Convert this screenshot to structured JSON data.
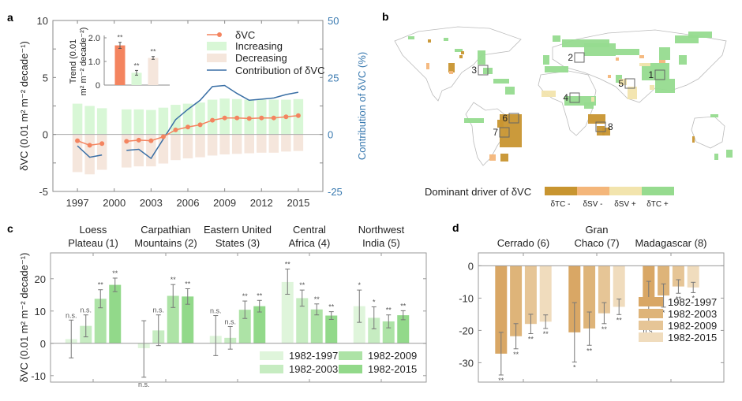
{
  "chart_data": [
    {
      "panel": "a",
      "type": "bar",
      "title": "",
      "x": [
        1997,
        1998,
        1999,
        2001,
        2002,
        2003,
        2004,
        2005,
        2006,
        2007,
        2008,
        2009,
        2010,
        2011,
        2012,
        2013,
        2014,
        2015
      ],
      "xticks": [
        "1997",
        "2000",
        "2003",
        "2006",
        "2009",
        "2012",
        "2015"
      ],
      "xtick_values": [
        1997,
        2000,
        2003,
        2006,
        2009,
        2012,
        2015
      ],
      "xlim": [
        1995,
        2017
      ],
      "ylabel": "δVC (0.01 m² m⁻² decade⁻¹)",
      "ylim": [
        -5,
        10
      ],
      "yticks": [
        "-5",
        "0",
        "5",
        "10"
      ],
      "ytick_values": [
        -5,
        0,
        5,
        10
      ],
      "y2label": "Contribution of δVC (%)",
      "y2lim": [
        -25,
        50
      ],
      "y2ticks": [
        "-25",
        "0",
        "25",
        "50"
      ],
      "y2tick_values": [
        -25,
        0,
        25,
        50
      ],
      "series": [
        {
          "name": "Increasing",
          "kind": "bar",
          "color": "#d8f7d6",
          "values": [
            2.7,
            2.5,
            2.3,
            2.2,
            2.2,
            2.15,
            2.35,
            2.6,
            2.7,
            2.8,
            3.05,
            3.15,
            3.1,
            3.05,
            3.05,
            3.05,
            3.05,
            3.1
          ]
        },
        {
          "name": "Decreasing",
          "kind": "bar",
          "color": "#f5e6dc",
          "values": [
            -3.3,
            -3.5,
            -3.1,
            -2.9,
            -2.8,
            -2.8,
            -2.55,
            -2.25,
            -2.1,
            -2.0,
            -1.85,
            -1.75,
            -1.7,
            -1.65,
            -1.6,
            -1.6,
            -1.5,
            -1.45
          ]
        },
        {
          "name": "δVC",
          "kind": "line-marker",
          "color": "#f4845f",
          "values": [
            -0.55,
            -0.95,
            -0.8,
            -0.6,
            -0.5,
            -0.55,
            -0.2,
            0.4,
            0.65,
            0.85,
            1.25,
            1.45,
            1.45,
            1.4,
            1.45,
            1.45,
            1.55,
            1.65
          ]
        },
        {
          "name": "Contribution of δVC",
          "kind": "line",
          "axis": "right",
          "color": "#3a6fa5",
          "values": [
            -5,
            -10,
            -9,
            -7,
            -6.5,
            -10.5,
            -2,
            6.5,
            11,
            15,
            21,
            21.5,
            18,
            15,
            15.5,
            16,
            17.5,
            18.5
          ]
        }
      ],
      "legend": [
        "δVC",
        "Increasing",
        "Decreasing",
        "Contribution of δVC"
      ],
      "legend_position": "top-right",
      "inset": {
        "type": "bar",
        "ylabel": "Trend (0.01 m² m⁻² decade⁻²)",
        "ylim": [
          0,
          2.0
        ],
        "yticks": [
          "0",
          "1.0",
          "2.0"
        ],
        "ytick_values": [
          0,
          1.0,
          2.0
        ],
        "bars": [
          {
            "name": "δVC",
            "value": 1.68,
            "err": 0.13,
            "sig": "**",
            "color": "#f4845f"
          },
          {
            "name": "Increasing",
            "value": 0.52,
            "err": 0.1,
            "sig": "**",
            "color": "#d8f7d6"
          },
          {
            "name": "Decreasing",
            "value": 1.15,
            "err": 0.06,
            "sig": "**",
            "color": "#f5e6dc"
          }
        ]
      }
    },
    {
      "panel": "b",
      "type": "heatmap",
      "title": "Dominant driver of δVC",
      "legend_title": "Dominant driver of δVC",
      "categories": [
        "δTC -",
        "δSV -",
        "δSV +",
        "δTC +"
      ],
      "colors": [
        "#c89530",
        "#f4b67a",
        "#f2e4ad",
        "#96db8f"
      ],
      "regions": [
        {
          "id": "1",
          "name": "Loess Plateau"
        },
        {
          "id": "2",
          "name": "Carpathian Mountains"
        },
        {
          "id": "3",
          "name": "Eastern United States"
        },
        {
          "id": "4",
          "name": "Central Africa"
        },
        {
          "id": "5",
          "name": "Northwest India"
        },
        {
          "id": "6",
          "name": "Cerrado"
        },
        {
          "id": "7",
          "name": "Gran Chaco"
        },
        {
          "id": "8",
          "name": "Madagascar"
        }
      ]
    },
    {
      "panel": "c",
      "type": "bar",
      "ylabel": "δVC (0.01 m² m⁻² decade⁻¹)",
      "ylim": [
        -12,
        28
      ],
      "yticks": [
        "-10",
        "0",
        "10",
        "20"
      ],
      "ytick_values": [
        -10,
        0,
        10,
        20
      ],
      "categories": [
        "Loess Plateau (1)",
        "Carpathian Mountains (2)",
        "Eastern United States (3)",
        "Central Africa (4)",
        "Northwest India (5)"
      ],
      "category_lines": [
        [
          "Loess",
          "Plateau (1)"
        ],
        [
          "Carpathian",
          "Mountains (2)"
        ],
        [
          "Eastern United",
          "States (3)"
        ],
        [
          "Central",
          "Africa (4)"
        ],
        [
          "Northwest",
          "India (5)"
        ]
      ],
      "series": [
        {
          "name": "1982-1997",
          "color": "#dff5db",
          "values": [
            1.3,
            -1.5,
            2.3,
            19.0,
            11.5
          ],
          "low": [
            -4.5,
            -10.5,
            -3.8,
            15.2,
            6.5
          ],
          "high": [
            7.2,
            7.0,
            8.6,
            23.0,
            16.5
          ],
          "sig": [
            "n.s.",
            "n.s.",
            "n.s.",
            "**",
            "*"
          ]
        },
        {
          "name": "1982-2003",
          "color": "#c6ecc1",
          "values": [
            5.4,
            4.0,
            1.7,
            14.0,
            7.9
          ],
          "low": [
            2.0,
            -0.7,
            -1.8,
            11.5,
            4.5
          ],
          "high": [
            8.8,
            8.8,
            5.2,
            16.5,
            11.3
          ],
          "sig": [
            "n.s.",
            "n.s.",
            "n.s.",
            "**",
            "*"
          ]
        },
        {
          "name": "1982-2009",
          "color": "#ade3a6",
          "values": [
            13.8,
            14.7,
            10.4,
            10.5,
            6.8
          ],
          "low": [
            11.0,
            11.1,
            7.7,
            8.8,
            4.8
          ],
          "high": [
            16.6,
            18.2,
            13.1,
            12.2,
            8.8
          ],
          "sig": [
            "**",
            "**",
            "**",
            "**",
            "**"
          ]
        },
        {
          "name": "1982-2015",
          "color": "#92d98a",
          "values": [
            18.1,
            14.5,
            11.5,
            8.6,
            8.7
          ],
          "low": [
            16.0,
            12.1,
            9.7,
            7.4,
            7.3
          ],
          "high": [
            20.2,
            16.9,
            13.3,
            9.8,
            10.1
          ],
          "sig": [
            "**",
            "**",
            "**",
            "**",
            "**"
          ]
        }
      ],
      "legend": [
        "1982-1997",
        "1982-2009",
        "1982-2003",
        "1982-2015"
      ],
      "legend_position": "bottom-right"
    },
    {
      "panel": "d",
      "type": "bar",
      "ylim": [
        -36,
        4
      ],
      "yticks": [
        "-30",
        "-20",
        "-10",
        "0"
      ],
      "ytick_values": [
        -30,
        -20,
        -10,
        0
      ],
      "categories": [
        "Cerrado (6)",
        "Gran Chaco (7)",
        "Madagascar (8)"
      ],
      "category_lines": [
        [
          "Cerrado (6)"
        ],
        [
          "Gran",
          "Chaco (7)"
        ],
        [
          "Madagascar (8)"
        ]
      ],
      "series": [
        {
          "name": "1982-1997",
          "color": "#d9a765",
          "values": [
            -27.2,
            -20.6,
            -11.3
          ],
          "low": [
            -33.8,
            -29.8,
            -18.0
          ],
          "high": [
            -20.6,
            -11.4,
            -4.8
          ],
          "sig": [
            "**",
            "*",
            "n.s."
          ]
        },
        {
          "name": "1982-2003",
          "color": "#deb479",
          "values": [
            -21.8,
            -19.4,
            -9.2
          ],
          "low": [
            -25.7,
            -24.6,
            -12.8
          ],
          "high": [
            -17.9,
            -14.3,
            -5.6
          ],
          "sig": [
            "**",
            "**",
            "*"
          ]
        },
        {
          "name": "1982-2009",
          "color": "#e6c596",
          "values": [
            -18.0,
            -14.7,
            -6.4
          ],
          "low": [
            -21.0,
            -17.9,
            -8.5
          ],
          "high": [
            -15.0,
            -11.4,
            -4.3
          ],
          "sig": [
            "**",
            "**",
            "**"
          ]
        },
        {
          "name": "1982-2015",
          "color": "#f0dcbd",
          "values": [
            -17.3,
            -12.7,
            -6.7
          ],
          "low": [
            -19.4,
            -15.1,
            -8.3
          ],
          "high": [
            -15.2,
            -10.3,
            -5.1
          ],
          "sig": [
            "**",
            "**",
            "*"
          ]
        }
      ],
      "legend": [
        "1982-1997",
        "1982-2003",
        "1982-2009",
        "1982-2015"
      ],
      "legend_position": "bottom-right"
    }
  ],
  "labels": {
    "panel_a": "a",
    "panel_b": "b",
    "panel_c": "c",
    "panel_d": "d"
  }
}
